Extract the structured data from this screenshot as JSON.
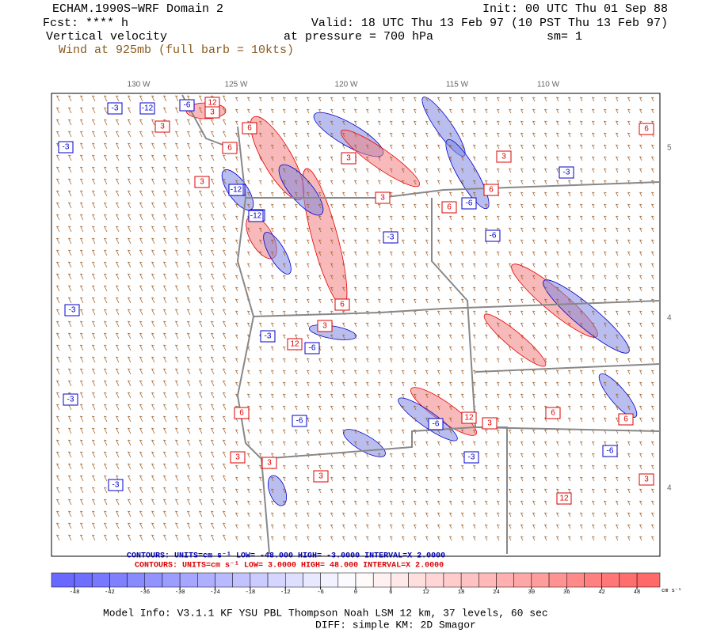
{
  "header": {
    "title": "ECHAM.1990S−WRF Domain 2",
    "init": "Init: 00 UTC Thu 01 Sep 88",
    "forecast": "Fcst: **** h",
    "valid": "Valid: 18 UTC Thu 13 Feb 97 (10 PST Thu 13 Feb 97)",
    "field": "Vertical velocity",
    "pressure": "at pressure =  700 hPa",
    "smoothing": "sm= 1",
    "wind": "Wind at 925mb (full barb = 10kts)"
  },
  "map": {
    "longitudes": [
      "130 W",
      "125 W",
      "120 W",
      "115 W",
      "110 W"
    ],
    "latitudes": [
      "5",
      "4",
      "4"
    ],
    "contour_labels": [
      "-3",
      "-12",
      "-6",
      "12",
      "3",
      "6",
      "-3",
      "3",
      "-12",
      "3",
      "-6",
      "6",
      "-12",
      "3",
      "-3",
      "6",
      "-3",
      "-6",
      "3",
      "6",
      "-6",
      "12",
      "-6",
      "3",
      "-3",
      "6",
      "3",
      "-3",
      "6",
      "-12",
      "3",
      "-6",
      "3",
      "12",
      "-3",
      "6",
      "-6",
      "3",
      "-3",
      "3",
      "6",
      "-3",
      "12",
      "-6",
      "3",
      "6"
    ],
    "contour_info_negative": "CONTOURS:  UNITS=cm s⁻¹  LOW= -48.000   HIGH= -3.0000   INTERVAL=X  2.0000",
    "contour_info_positive": "CONTOURS:  UNITS=cm s⁻¹  LOW=  3.0000   HIGH=  48.000   INTERVAL=X  2.0000"
  },
  "colorbar": {
    "ticks": [
      -48,
      -42,
      -36,
      -30,
      -24,
      -18,
      -12,
      -6,
      0,
      6,
      12,
      18,
      24,
      30,
      36,
      42,
      48
    ],
    "unit": "cm s⁻¹"
  },
  "footer": {
    "model_info": "Model Info: V3.1.1    KF     YSU PBL   Thompson     Noah LSM   12 km,    37 levels,    60 sec",
    "diff": "DIFF: simple KM: 2D Smagor"
  }
}
